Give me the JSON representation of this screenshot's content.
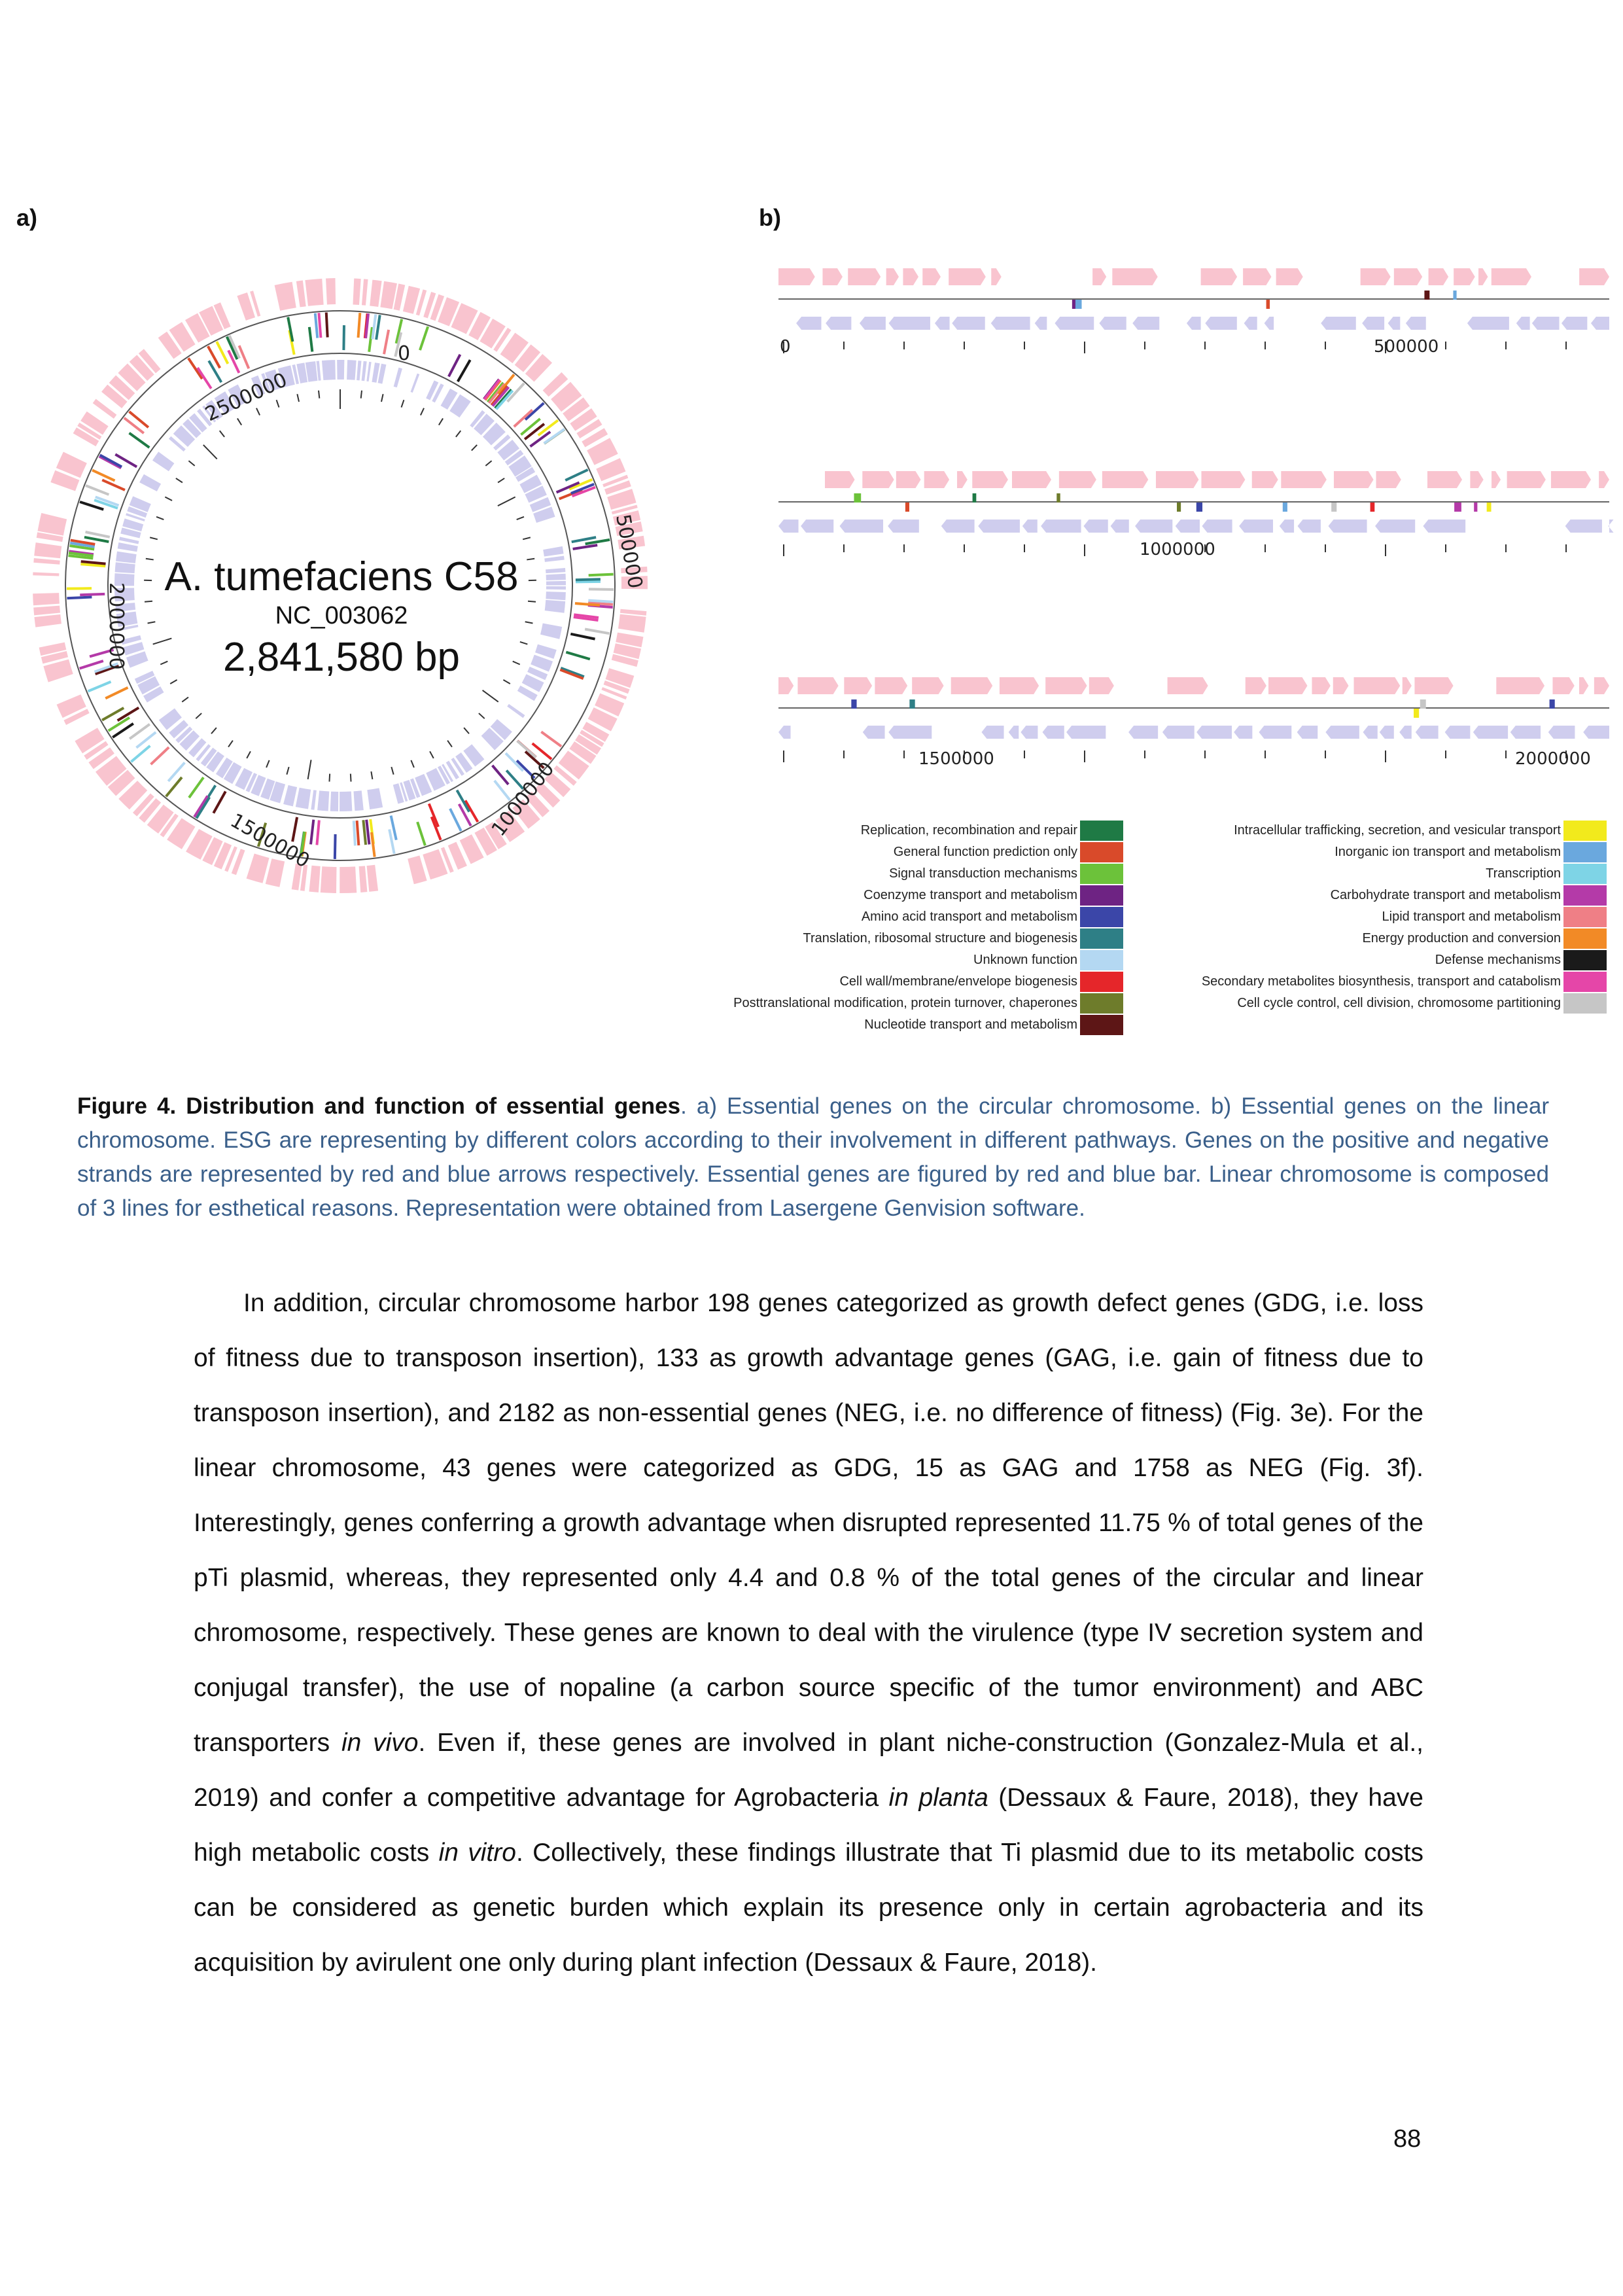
{
  "figure": {
    "panel_a_label": "a)",
    "panel_b_label": "b)",
    "circular": {
      "organism": "A. tumefaciens C58",
      "accession": "NC_003062",
      "size": "2,841,580 bp",
      "ticks": [
        "0",
        "500000",
        "1000000",
        "1500000",
        "2000000",
        "2500000"
      ]
    },
    "linear": {
      "row1_ticks": [
        "0",
        "500000"
      ],
      "row2_ticks": [
        "1000000"
      ],
      "row3_ticks": [
        "1500000",
        "2000000"
      ]
    },
    "legend_left": [
      {
        "label": "Replication, recombination and repair",
        "color": "#1f7a45"
      },
      {
        "label": "General function prediction only",
        "color": "#d94a2a"
      },
      {
        "label": "Signal transduction mechanisms",
        "color": "#6cc23a"
      },
      {
        "label": "Coenzyme transport and metabolism",
        "color": "#6e2383"
      },
      {
        "label": "Amino acid transport and metabolism",
        "color": "#3b46a8"
      },
      {
        "label": "Translation, ribosomal structure and biogenesis",
        "color": "#2e7f86"
      },
      {
        "label": "Unknown function",
        "color": "#b4d8f2"
      },
      {
        "label": "Cell wall/membrane/envelope biogenesis",
        "color": "#e5262a"
      },
      {
        "label": "Posttranslational modification, protein turnover, chaperones",
        "color": "#6e7c2b"
      },
      {
        "label": "Nucleotide transport and metabolism",
        "color": "#5d1616"
      }
    ],
    "legend_right": [
      {
        "label": "Intracellular trafficking, secretion, and vesicular transport",
        "color": "#f2ea1c"
      },
      {
        "label": "Inorganic ion transport and metabolism",
        "color": "#6aa8de"
      },
      {
        "label": "Transcription",
        "color": "#7ed4e6"
      },
      {
        "label": "Carbohydrate transport and metabolism",
        "color": "#b43aa8"
      },
      {
        "label": "Lipid transport and metabolism",
        "color": "#ef7f86"
      },
      {
        "label": "Energy production and conversion",
        "color": "#f28a26"
      },
      {
        "label": "Defense mechanisms",
        "color": "#1a1a1a"
      },
      {
        "label": "Secondary metabolites biosynthesis, transport and catabolism",
        "color": "#e546a8"
      },
      {
        "label": "Cell cycle control, cell division, chromosome partitioning",
        "color": "#c6c6c6"
      }
    ],
    "plus_strand_color": "#f9c4cf",
    "minus_strand_color": "#cfcdee"
  },
  "caption": {
    "title": "Figure 4. Distribution and function of essential genes",
    "text": ". a) Essential genes on the circular chromosome. b) Essential genes on the linear chromosome. ESG are representing by different colors according to their involvement in different pathways. Genes on the positive and negative strands are represented by red and blue arrows respectively. Essential genes are figured by red and blue bar. Linear chromosome is composed of 3 lines for esthetical reasons. Representation were obtained from Lasergene Genvision software."
  },
  "body": {
    "s1": "In addition, circular chromosome harbor 198 genes categorized as growth defect genes (GDG, i.e. loss of fitness due to transposon insertion), 133 as growth advantage genes (GAG, i.e. gain of fitness due to transposon insertion), and 2182 as non-essential genes (NEG, i.e. no difference of fitness) (Fig. 3e). For the linear chromosome, 43 genes were categorized as GDG, 15 as GAG and 1758 as NEG (Fig. 3f). Interestingly, genes conferring a growth advantage when disrupted represented 11.75 % of total genes of the pTi plasmid, whereas, they represented only 4.4 and 0.8 % of the total genes of the circular and linear chromosome, respectively. These genes are known to deal with the virulence (type IV secretion system and conjugal transfer), the use of nopaline (a carbon source specific of the tumor environment) and ABC transporters ",
    "i1": "in vivo",
    "s2": ". Even if, these genes are involved in plant niche-construction (Gonzalez-Mula et al., 2019) and confer a competitive advantage for Agrobacteria ",
    "i2": "in planta",
    "s3": " (Dessaux & Faure, 2018), they have high metabolic costs ",
    "i3": "in vitro",
    "s4": ". Collectively, these findings illustrate that Ti plasmid due to its metabolic costs can be considered as genetic burden which explain its presence only in certain agrobacteria and its acquisition by avirulent one only during plant infection (Dessaux & Faure, 2018)."
  },
  "page_number": "88"
}
